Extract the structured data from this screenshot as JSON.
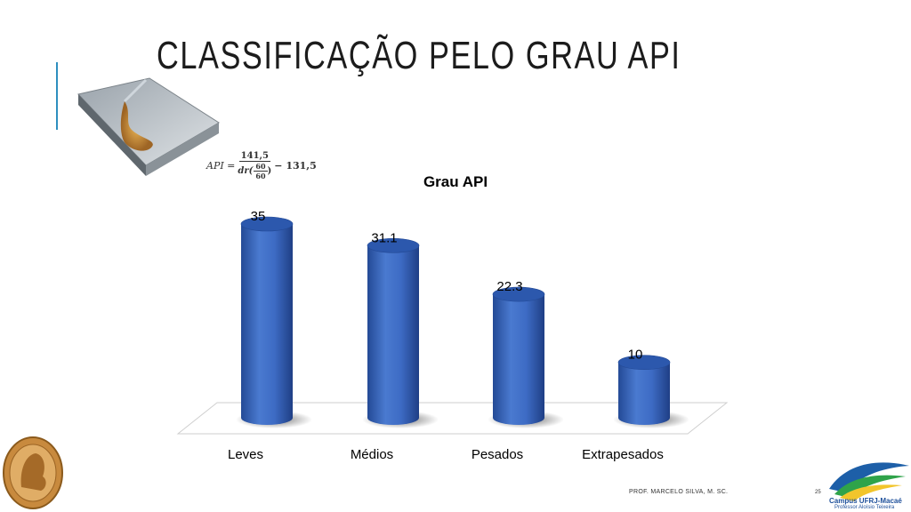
{
  "slide": {
    "title": "CLASSIFICAÇÃO PELO GRAU API",
    "footer": "PROF. MARCELO SILVA, M. SC.",
    "page_number": "25"
  },
  "formula": {
    "lhs": "API =",
    "numerator": "141,5",
    "den_prefix": "dr(",
    "den_num": "60",
    "den_den": "60",
    "den_suffix": ")",
    "rhs": "− 131,5"
  },
  "logo": {
    "campus_name": "Campus UFRJ-Macaé",
    "campus_sub": "Professor Aloísio Teixeira"
  },
  "colors": {
    "bar": "#3d6bc4",
    "bar_dark": "#244a96",
    "bar_top": "#2c58ad",
    "accent": "#2e8fbf"
  },
  "chart_data": {
    "type": "bar",
    "title": "Grau API",
    "categories": [
      "Leves",
      "Médios",
      "Pesados",
      "Extrapesados"
    ],
    "values": [
      35,
      31.1,
      22.3,
      10
    ],
    "data_labels": [
      "35",
      "31.1",
      "22.3",
      "10"
    ],
    "ylim": [
      0,
      35
    ],
    "grid": false,
    "legend": "none",
    "style": "3d-cylinder"
  }
}
